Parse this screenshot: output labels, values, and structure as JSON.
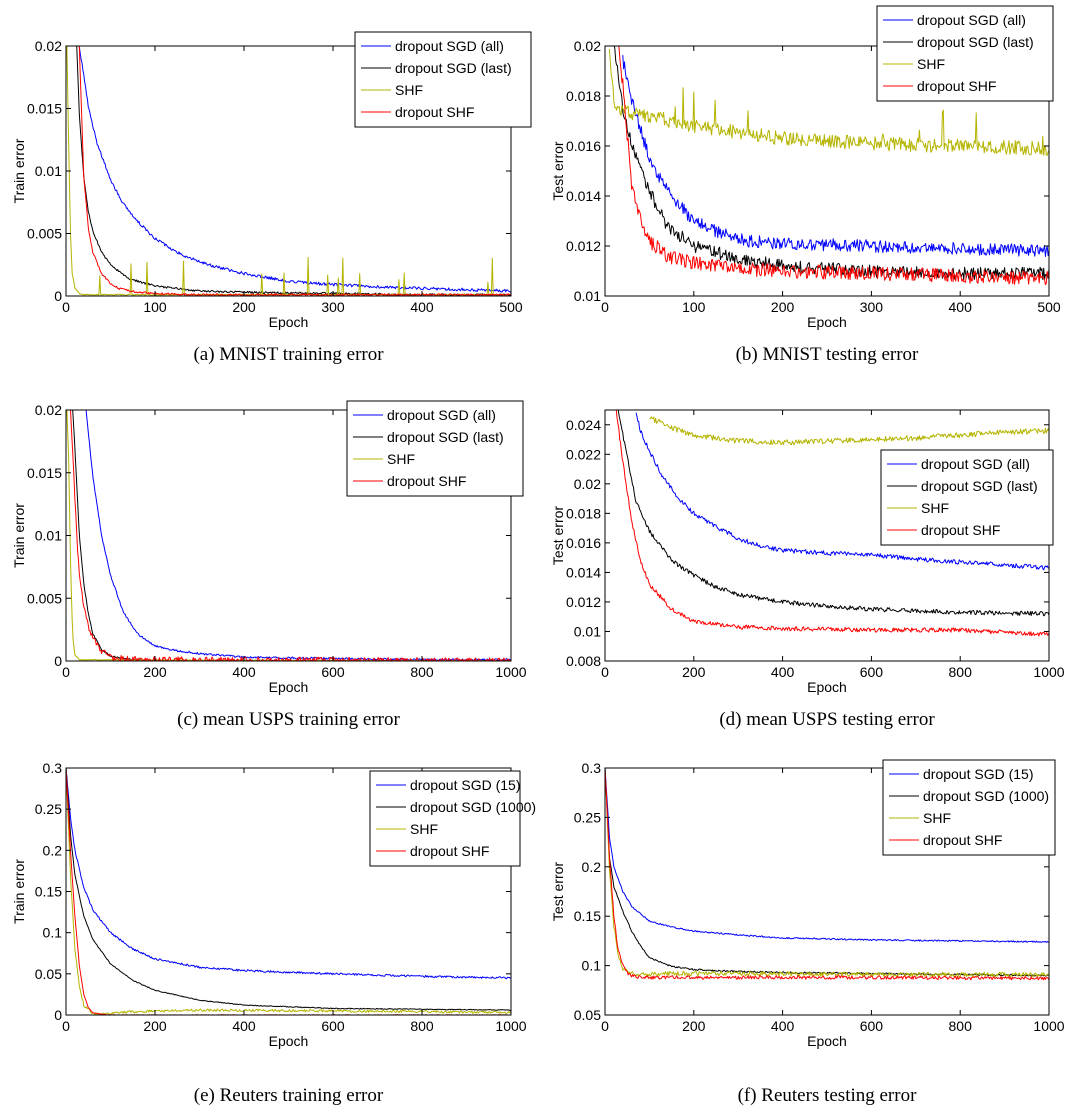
{
  "chart_data": [
    {
      "type": "line",
      "caption": "(a)  MNIST training error",
      "xlabel": "Epoch",
      "ylabel": "Train error",
      "xlim": [
        0,
        500
      ],
      "ylim": [
        0,
        0.02
      ],
      "xticks": [
        0,
        100,
        200,
        300,
        400,
        500
      ],
      "yticks": [
        0,
        0.005,
        0.01,
        0.015,
        0.02
      ],
      "ytick_labels": [
        "0",
        "0.005",
        "0.01",
        "0.015",
        "0.02"
      ],
      "legend_position": "top-right",
      "series": [
        {
          "name": "dropout SGD (all)",
          "color": "#0000ff",
          "noise": 0.00012,
          "x": [
            15,
            25,
            35,
            50,
            65,
            80,
            100,
            130,
            160,
            200,
            250,
            300,
            400,
            500
          ],
          "y": [
            0.02,
            0.0152,
            0.0122,
            0.0093,
            0.0073,
            0.006,
            0.0046,
            0.0033,
            0.0025,
            0.0018,
            0.0012,
            0.0009,
            0.0006,
            0.0004
          ]
        },
        {
          "name": "dropout SGD (last)",
          "color": "#000000",
          "noise": 8e-05,
          "x": [
            12,
            15,
            20,
            25,
            30,
            40,
            50,
            70,
            100,
            150,
            200,
            300,
            400,
            500
          ],
          "y": [
            0.02,
            0.0145,
            0.0095,
            0.0068,
            0.0052,
            0.0035,
            0.0025,
            0.0014,
            0.0008,
            0.0004,
            0.0003,
            0.0002,
            0.0001,
            0.0001
          ]
        },
        {
          "name": "SHF",
          "color": "#b4b400",
          "noise": 5e-05,
          "spikes": true,
          "x": [
            1,
            3,
            5,
            7,
            10,
            15,
            20,
            30,
            50,
            100,
            500
          ],
          "y": [
            0.02,
            0.012,
            0.005,
            0.0018,
            0.0006,
            0.0002,
            0.0001,
            0.0001,
            0.0001,
            0.0001,
            0.0001
          ]
        },
        {
          "name": "dropout SHF",
          "color": "#ff0000",
          "noise": 8e-05,
          "x": [
            15,
            20,
            25,
            30,
            40,
            50,
            60,
            80,
            100,
            150,
            200,
            500
          ],
          "y": [
            0.02,
            0.0095,
            0.0055,
            0.0035,
            0.0018,
            0.001,
            0.0006,
            0.0003,
            0.0002,
            0.0001,
            0.0001,
            0.0001
          ]
        }
      ]
    },
    {
      "type": "line",
      "caption": "(b)  MNIST testing error",
      "xlabel": "Epoch",
      "ylabel": "Test error",
      "xlim": [
        0,
        500
      ],
      "ylim": [
        0.01,
        0.02
      ],
      "xticks": [
        0,
        100,
        200,
        300,
        400,
        500
      ],
      "yticks": [
        0.01,
        0.012,
        0.014,
        0.016,
        0.018,
        0.02
      ],
      "ytick_labels": [
        "0.01",
        "0.012",
        "0.014",
        "0.016",
        "0.018",
        "0.02"
      ],
      "legend_position": "top-right",
      "series": [
        {
          "name": "dropout SGD (all)",
          "color": "#0000ff",
          "noise": 0.00025,
          "x": [
            20,
            30,
            50,
            70,
            100,
            130,
            160,
            200,
            300,
            400,
            500
          ],
          "y": [
            0.0195,
            0.0178,
            0.0155,
            0.0142,
            0.013,
            0.0125,
            0.0122,
            0.0121,
            0.012,
            0.0119,
            0.0118
          ]
        },
        {
          "name": "dropout SGD (last)",
          "color": "#000000",
          "noise": 0.00025,
          "x": [
            10,
            20,
            30,
            50,
            70,
            100,
            150,
            200,
            300,
            400,
            500
          ],
          "y": [
            0.02,
            0.0175,
            0.016,
            0.0142,
            0.0128,
            0.012,
            0.0115,
            0.0112,
            0.011,
            0.0109,
            0.0109
          ]
        },
        {
          "name": "SHF",
          "color": "#b4b400",
          "noise": 0.00028,
          "spikes": true,
          "x": [
            5,
            10,
            20,
            50,
            100,
            200,
            300,
            400,
            500
          ],
          "y": [
            0.02,
            0.0178,
            0.0174,
            0.0172,
            0.0168,
            0.0163,
            0.0161,
            0.016,
            0.0159
          ]
        },
        {
          "name": "dropout SHF",
          "color": "#ff0000",
          "noise": 0.00028,
          "x": [
            15,
            20,
            25,
            30,
            40,
            50,
            70,
            100,
            150,
            200,
            300,
            400,
            500
          ],
          "y": [
            0.02,
            0.0185,
            0.0165,
            0.0145,
            0.013,
            0.0122,
            0.0116,
            0.0113,
            0.0111,
            0.011,
            0.0109,
            0.0108,
            0.0107
          ]
        }
      ]
    },
    {
      "type": "line",
      "caption": "(c)  mean USPS training error",
      "xlabel": "Epoch",
      "ylabel": "Train error",
      "xlim": [
        0,
        1000
      ],
      "ylim": [
        0,
        0.02
      ],
      "xticks": [
        0,
        200,
        400,
        600,
        800,
        1000
      ],
      "yticks": [
        0,
        0.005,
        0.01,
        0.015,
        0.02
      ],
      "ytick_labels": [
        "0",
        "0.005",
        "0.01",
        "0.015",
        "0.02"
      ],
      "legend_position": "top-right",
      "series": [
        {
          "name": "dropout SGD (all)",
          "color": "#0000ff",
          "noise": 8e-05,
          "x": [
            45,
            60,
            80,
            100,
            130,
            160,
            200,
            250,
            300,
            400,
            600,
            800,
            1000
          ],
          "y": [
            0.02,
            0.0148,
            0.01,
            0.0068,
            0.0038,
            0.0022,
            0.0012,
            0.0008,
            0.0006,
            0.0003,
            0.0002,
            0.0001,
            0.0001
          ]
        },
        {
          "name": "dropout SGD (last)",
          "color": "#000000",
          "noise": 6e-05,
          "x": [
            15,
            20,
            25,
            30,
            40,
            50,
            60,
            80,
            100,
            150,
            200,
            1000
          ],
          "y": [
            0.02,
            0.017,
            0.0135,
            0.01,
            0.0062,
            0.0038,
            0.0022,
            0.0009,
            0.0004,
            0.0001,
            0.0,
            0.0
          ]
        },
        {
          "name": "SHF",
          "color": "#b4b400",
          "noise": 3e-05,
          "x": [
            2,
            6,
            10,
            15,
            20,
            30,
            1000
          ],
          "y": [
            0.02,
            0.016,
            0.008,
            0.002,
            0.0005,
            0.0001,
            0.0
          ]
        },
        {
          "name": "dropout SHF",
          "color": "#ff0000",
          "noise": 0.00025,
          "x": [
            10,
            15,
            20,
            25,
            30,
            40,
            50,
            60,
            80,
            100,
            150,
            1000
          ],
          "y": [
            0.02,
            0.0165,
            0.013,
            0.0095,
            0.007,
            0.0042,
            0.0028,
            0.0018,
            0.0008,
            0.0003,
            0.0001,
            0.0
          ]
        }
      ]
    },
    {
      "type": "line",
      "caption": "(d)  mean USPS testing error",
      "xlabel": "Epoch",
      "ylabel": "Test error",
      "xlim": [
        0,
        1000
      ],
      "ylim": [
        0.008,
        0.025
      ],
      "xticks": [
        0,
        200,
        400,
        600,
        800,
        1000
      ],
      "yticks": [
        0.008,
        0.01,
        0.012,
        0.014,
        0.016,
        0.018,
        0.02,
        0.022,
        0.024
      ],
      "ytick_labels": [
        "0.008",
        "0.01",
        "0.012",
        "0.014",
        "0.016",
        "0.018",
        "0.02",
        "0.022",
        "0.024"
      ],
      "legend_position": "middle-right",
      "series": [
        {
          "name": "dropout SGD (all)",
          "color": "#0000ff",
          "noise": 0.00015,
          "x": [
            70,
            80,
            100,
            130,
            160,
            200,
            250,
            300,
            350,
            400,
            500,
            600,
            700,
            800,
            900,
            1000
          ],
          "y": [
            0.0248,
            0.0236,
            0.0222,
            0.0205,
            0.0192,
            0.018,
            0.0171,
            0.0163,
            0.0158,
            0.0155,
            0.0153,
            0.0152,
            0.0149,
            0.0147,
            0.0145,
            0.0143
          ]
        },
        {
          "name": "dropout SGD (last)",
          "color": "#000000",
          "noise": 0.00015,
          "x": [
            30,
            50,
            70,
            100,
            150,
            200,
            250,
            300,
            400,
            500,
            600,
            800,
            1000
          ],
          "y": [
            0.025,
            0.0218,
            0.0188,
            0.0168,
            0.0148,
            0.0138,
            0.013,
            0.0125,
            0.012,
            0.0117,
            0.0115,
            0.0113,
            0.0112
          ]
        },
        {
          "name": "SHF",
          "color": "#b4b400",
          "noise": 0.00018,
          "x": [
            100,
            150,
            200,
            300,
            400,
            500,
            600,
            700,
            800,
            900,
            1000
          ],
          "y": [
            0.0245,
            0.0238,
            0.0233,
            0.0229,
            0.0228,
            0.0229,
            0.023,
            0.0231,
            0.0233,
            0.0235,
            0.0236
          ]
        },
        {
          "name": "dropout SHF",
          "color": "#ff0000",
          "noise": 0.00015,
          "x": [
            25,
            40,
            60,
            80,
            100,
            150,
            200,
            300,
            400,
            600,
            800,
            1000
          ],
          "y": [
            0.025,
            0.0215,
            0.0175,
            0.0148,
            0.0132,
            0.0115,
            0.0107,
            0.0103,
            0.0102,
            0.0101,
            0.0101,
            0.0098
          ]
        }
      ]
    },
    {
      "type": "line",
      "caption": "(e)  Reuters training error",
      "xlabel": "Epoch",
      "ylabel": "Train error",
      "xlim": [
        0,
        1000
      ],
      "ylim": [
        0,
        0.3
      ],
      "xticks": [
        0,
        200,
        400,
        600,
        800,
        1000
      ],
      "yticks": [
        0,
        0.05,
        0.1,
        0.15,
        0.2,
        0.25,
        0.3
      ],
      "ytick_labels": [
        "0",
        "0.05",
        "0.1",
        "0.15",
        "0.2",
        "0.25",
        "0.3"
      ],
      "legend_position": "top-right",
      "series": [
        {
          "name": "dropout SGD (15)",
          "color": "#0000ff",
          "noise": 0.0012,
          "x": [
            0,
            10,
            20,
            40,
            60,
            100,
            150,
            200,
            300,
            400,
            600,
            800,
            1000
          ],
          "y": [
            0.3,
            0.24,
            0.2,
            0.155,
            0.128,
            0.1,
            0.08,
            0.068,
            0.058,
            0.054,
            0.05,
            0.047,
            0.045
          ]
        },
        {
          "name": "dropout SGD (1000)",
          "color": "#000000",
          "noise": 0.0005,
          "x": [
            0,
            10,
            20,
            40,
            60,
            100,
            150,
            200,
            300,
            400,
            600,
            800,
            1000
          ],
          "y": [
            0.3,
            0.22,
            0.17,
            0.12,
            0.092,
            0.062,
            0.042,
            0.03,
            0.018,
            0.012,
            0.008,
            0.007,
            0.006
          ]
        },
        {
          "name": "SHF",
          "color": "#b4b400",
          "noise": 0.0015,
          "x": [
            0,
            10,
            20,
            30,
            40,
            60,
            80,
            150,
            300,
            600,
            1000
          ],
          "y": [
            0.3,
            0.17,
            0.08,
            0.035,
            0.012,
            0.002,
            0.001,
            0.004,
            0.006,
            0.005,
            0.003
          ]
        },
        {
          "name": "dropout SHF",
          "color": "#ff0000",
          "noise": 0.0003,
          "x": [
            0,
            10,
            20,
            30,
            40,
            50,
            60,
            80,
            100,
            1000
          ],
          "y": [
            0.3,
            0.2,
            0.12,
            0.06,
            0.025,
            0.009,
            0.003,
            0.001,
            0.0,
            0.0
          ]
        }
      ]
    },
    {
      "type": "line",
      "caption": "(f)  Reuters testing error",
      "xlabel": "Epoch",
      "ylabel": "Test error",
      "xlim": [
        0,
        1000
      ],
      "ylim": [
        0.05,
        0.3
      ],
      "xticks": [
        0,
        200,
        400,
        600,
        800,
        1000
      ],
      "yticks": [
        0.05,
        0.1,
        0.15,
        0.2,
        0.25,
        0.3
      ],
      "ytick_labels": [
        "0.05",
        "0.1",
        "0.15",
        "0.2",
        "0.25",
        "0.3"
      ],
      "legend_position": "top-right",
      "series": [
        {
          "name": "dropout SGD (15)",
          "color": "#0000ff",
          "noise": 0.0007,
          "x": [
            0,
            10,
            20,
            40,
            60,
            100,
            150,
            200,
            300,
            400,
            600,
            800,
            1000
          ],
          "y": [
            0.3,
            0.23,
            0.2,
            0.175,
            0.16,
            0.145,
            0.139,
            0.135,
            0.131,
            0.128,
            0.126,
            0.125,
            0.124
          ]
        },
        {
          "name": "dropout SGD (1000)",
          "color": "#000000",
          "noise": 0.0008,
          "x": [
            0,
            10,
            20,
            40,
            60,
            80,
            100,
            150,
            200,
            300,
            400,
            600,
            800,
            1000
          ],
          "y": [
            0.3,
            0.21,
            0.18,
            0.155,
            0.135,
            0.12,
            0.108,
            0.099,
            0.096,
            0.094,
            0.093,
            0.092,
            0.091,
            0.09
          ]
        },
        {
          "name": "SHF",
          "color": "#b4b400",
          "noise": 0.0022,
          "x": [
            0,
            10,
            20,
            30,
            40,
            60,
            80,
            150,
            300,
            600,
            1000
          ],
          "y": [
            0.3,
            0.2,
            0.14,
            0.11,
            0.097,
            0.092,
            0.091,
            0.092,
            0.092,
            0.091,
            0.091
          ]
        },
        {
          "name": "dropout SHF",
          "color": "#ff0000",
          "noise": 0.0018,
          "x": [
            0,
            10,
            20,
            30,
            40,
            50,
            60,
            80,
            150,
            300,
            600,
            1000
          ],
          "y": [
            0.3,
            0.21,
            0.15,
            0.115,
            0.1,
            0.093,
            0.09,
            0.088,
            0.088,
            0.088,
            0.088,
            0.087
          ]
        }
      ]
    }
  ]
}
